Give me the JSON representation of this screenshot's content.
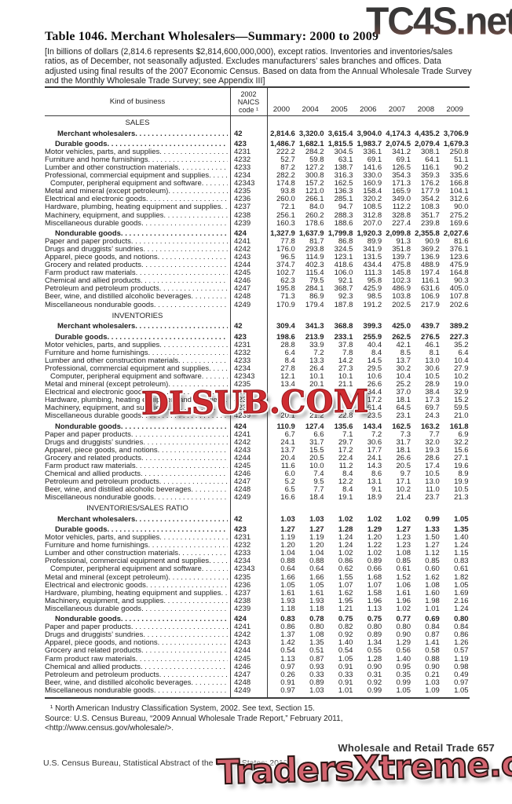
{
  "watermarks": {
    "top": "TC4S.net",
    "middle": "DLSUB.COM",
    "bottom": "TradersXtreme.com"
  },
  "colors": {
    "watermark_mid_red": "#cf2b30",
    "watermark_bottom_salmon": "#d2636e",
    "rule_gray": "#3c3c3c"
  },
  "title": "Table 1046. Merchant Wholesalers—Summary: 2000 to 2009",
  "note": "[In billions of dollars (2,814.6 represents $2,814,600,000,000), except ratios. Inventories and inventories/sales ratios, as of December, not seasonally adjusted. Excludes manufacturers’ sales branches and offices. Data adjusted using final results of the 2007 Economic Census. Based on data from the Annual Wholesale Trade Survey and the Monthly Wholesale Trade Survey; see Appendix III]",
  "table": {
    "header": {
      "kind": "Kind of business",
      "naics_lines": [
        "2002",
        "NAICS",
        "code ¹"
      ],
      "years": [
        "2000",
        "2004",
        "2005",
        "2006",
        "2007",
        "2008",
        "2009"
      ]
    },
    "row_defs": [
      {
        "label": "Merchant wholesalers",
        "code": "42",
        "style": "total"
      },
      {
        "label": "Durable goods",
        "code": "423",
        "style": "group"
      },
      {
        "label": "Motor vehicles, parts, and supplies",
        "code": "4231",
        "style": "item"
      },
      {
        "label": "Furniture and home furnishings",
        "code": "4232",
        "style": "item"
      },
      {
        "label": "Lumber and other construction materials",
        "code": "4233",
        "style": "item"
      },
      {
        "label": "Professional, commercial equipment and supplies",
        "code": "4234",
        "style": "item"
      },
      {
        "label": "Computer, peripheral equipment and software",
        "code": "42343",
        "style": "item2"
      },
      {
        "label": "Metal and mineral (except petroleum)",
        "code": "4235",
        "style": "item"
      },
      {
        "label": "Electrical and electronic goods",
        "code": "4236",
        "style": "item"
      },
      {
        "label": "Hardware, plumbing, heating equipment and supplies",
        "code": "4237",
        "style": "item"
      },
      {
        "label": "Machinery, equipment, and supplies",
        "code": "4238",
        "style": "item"
      },
      {
        "label": "Miscellaneous durable goods",
        "code": "4239",
        "style": "item"
      },
      {
        "label": "Nondurable goods",
        "code": "424",
        "style": "group"
      },
      {
        "label": "Paper and paper products",
        "code": "4241",
        "style": "item"
      },
      {
        "label": "Drugs and druggists’ sundries",
        "code": "4242",
        "style": "item"
      },
      {
        "label": "Apparel, piece goods, and notions",
        "code": "4243",
        "style": "item"
      },
      {
        "label": "Grocery and related products",
        "code": "4244",
        "style": "item"
      },
      {
        "label": "Farm product raw materials",
        "code": "4245",
        "style": "item"
      },
      {
        "label": "Chemical and allied products",
        "code": "4246",
        "style": "item"
      },
      {
        "label": "Petroleum and petroleum products",
        "code": "4247",
        "style": "item"
      },
      {
        "label": "Beer, wine, and distilled alcoholic beverages",
        "code": "4248",
        "style": "item"
      },
      {
        "label": "Miscellaneous nondurable goods",
        "code": "4249",
        "style": "item"
      }
    ],
    "sections": [
      {
        "heading": "SALES",
        "values": [
          [
            "2,814.6",
            "3,320.0",
            "3,615.4",
            "3,904.0",
            "4,174.3",
            "4,435.2",
            "3,706.9"
          ],
          [
            "1,486.7",
            "1,682.1",
            "1,815.5",
            "1,983.7",
            "2,074.5",
            "2,079.4",
            "1,679.3"
          ],
          [
            "222.2",
            "284.2",
            "304.5",
            "336.1",
            "341.2",
            "308.1",
            "250.8"
          ],
          [
            "52.7",
            "59.8",
            "63.1",
            "69.1",
            "69.1",
            "64.1",
            "51.1"
          ],
          [
            "87.2",
            "127.2",
            "138.7",
            "141.6",
            "126.5",
            "116.1",
            "90.2"
          ],
          [
            "282.2",
            "300.8",
            "316.3",
            "330.0",
            "354.3",
            "359.3",
            "335.6"
          ],
          [
            "174.8",
            "157.2",
            "162.5",
            "160.9",
            "171.3",
            "176.2",
            "166.8"
          ],
          [
            "93.8",
            "121.0",
            "136.3",
            "158.4",
            "165.9",
            "177.9",
            "104.1"
          ],
          [
            "260.0",
            "266.1",
            "285.1",
            "320.2",
            "349.0",
            "354.2",
            "312.6"
          ],
          [
            "72.1",
            "84.0",
            "94.7",
            "108.5",
            "112.2",
            "108.3",
            "90.0"
          ],
          [
            "256.1",
            "260.2",
            "288.3",
            "312.8",
            "328.8",
            "351.7",
            "275.2"
          ],
          [
            "160.3",
            "178.6",
            "188.6",
            "207.0",
            "227.4",
            "239.8",
            "169.6"
          ],
          [
            "1,327.9",
            "1,637.9",
            "1,799.8",
            "1,920.3",
            "2,099.8",
            "2,355.8",
            "2,027.6"
          ],
          [
            "77.8",
            "81.7",
            "86.8",
            "89.9",
            "91.3",
            "90.9",
            "81.6"
          ],
          [
            "176.0",
            "293.8",
            "324.5",
            "341.9",
            "351.8",
            "369.2",
            "376.1"
          ],
          [
            "96.5",
            "114.9",
            "123.1",
            "131.5",
            "139.7",
            "136.9",
            "123.6"
          ],
          [
            "374.7",
            "402.3",
            "418.6",
            "434.4",
            "475.8",
            "488.9",
            "475.9"
          ],
          [
            "102.7",
            "115.4",
            "106.0",
            "111.3",
            "145.8",
            "197.4",
            "164.8"
          ],
          [
            "62.3",
            "79.5",
            "92.1",
            "95.8",
            "102.3",
            "116.1",
            "90.3"
          ],
          [
            "195.8",
            "284.1",
            "368.7",
            "425.9",
            "486.9",
            "631.6",
            "405.0"
          ],
          [
            "71.3",
            "86.9",
            "92.3",
            "98.5",
            "103.8",
            "106.9",
            "107.8"
          ],
          [
            "170.9",
            "179.4",
            "187.8",
            "191.2",
            "202.5",
            "217.9",
            "202.6"
          ]
        ]
      },
      {
        "heading": "INVENTORIES",
        "values": [
          [
            "309.4",
            "341.3",
            "368.8",
            "399.3",
            "425.0",
            "439.7",
            "389.2"
          ],
          [
            "198.6",
            "213.9",
            "233.1",
            "255.9",
            "262.5",
            "276.5",
            "227.3"
          ],
          [
            "28.8",
            "33.9",
            "37.8",
            "40.4",
            "42.1",
            "46.1",
            "35.2"
          ],
          [
            "6.4",
            "7.2",
            "7.8",
            "8.4",
            "8.5",
            "8.1",
            "6.4"
          ],
          [
            "8.4",
            "13.3",
            "14.2",
            "14.5",
            "13.7",
            "13.0",
            "10.4"
          ],
          [
            "27.8",
            "26.4",
            "27.3",
            "29.5",
            "30.2",
            "30.6",
            "27.9"
          ],
          [
            "12.1",
            "10.1",
            "10.1",
            "10.6",
            "10.4",
            "10.5",
            "10.2"
          ],
          [
            "13.4",
            "20.1",
            "21.1",
            "26.6",
            "25.2",
            "28.9",
            "19.0"
          ],
          [
            "",
            "",
            "",
            "34.4",
            "37.0",
            "38.4",
            "32.9"
          ],
          [
            "",
            "",
            "",
            "17.2",
            "18.1",
            "17.3",
            "15.2"
          ],
          [
            "",
            "",
            "",
            "61.4",
            "64.5",
            "69.7",
            "59.5"
          ],
          [
            "20.1",
            "21.2",
            "22.8",
            "23.5",
            "23.1",
            "24.3",
            "21.0"
          ],
          [
            "110.9",
            "127.4",
            "135.6",
            "143.4",
            "162.5",
            "163.2",
            "161.8"
          ],
          [
            "6.7",
            "6.6",
            "7.1",
            "7.2",
            "7.3",
            "7.7",
            "6.9"
          ],
          [
            "24.1",
            "31.7",
            "29.7",
            "30.6",
            "31.7",
            "32.0",
            "32.2"
          ],
          [
            "13.7",
            "15.5",
            "17.2",
            "17.7",
            "18.1",
            "19.3",
            "15.6"
          ],
          [
            "20.4",
            "20.5",
            "22.4",
            "24.1",
            "26.6",
            "28.6",
            "27.1"
          ],
          [
            "11.6",
            "10.0",
            "11.2",
            "14.3",
            "20.5",
            "17.4",
            "19.6"
          ],
          [
            "6.0",
            "7.4",
            "8.4",
            "8.6",
            "9.7",
            "10.5",
            "8.9"
          ],
          [
            "5.2",
            "9.5",
            "12.2",
            "13.1",
            "17.1",
            "13.0",
            "19.9"
          ],
          [
            "6.5",
            "7.7",
            "8.4",
            "9.1",
            "10.2",
            "11.0",
            "10.5"
          ],
          [
            "16.6",
            "18.4",
            "19.1",
            "18.9",
            "21.4",
            "23.7",
            "21.3"
          ]
        ]
      },
      {
        "heading": "INVENTORIES/SALES RATIO",
        "values": [
          [
            "1.03",
            "1.03",
            "1.02",
            "1.02",
            "1.02",
            "0.99",
            "1.05"
          ],
          [
            "1.27",
            "1.27",
            "1.28",
            "1.29",
            "1.27",
            "1.33",
            "1.35"
          ],
          [
            "1.19",
            "1.19",
            "1.24",
            "1.20",
            "1.23",
            "1.50",
            "1.40"
          ],
          [
            "1.20",
            "1.20",
            "1.24",
            "1.22",
            "1.23",
            "1.27",
            "1.24"
          ],
          [
            "1.04",
            "1.04",
            "1.02",
            "1.02",
            "1.08",
            "1.12",
            "1.15"
          ],
          [
            "0.88",
            "0.88",
            "0.86",
            "0.89",
            "0.85",
            "0.85",
            "0.83"
          ],
          [
            "0.64",
            "0.64",
            "0.62",
            "0.66",
            "0.61",
            "0.60",
            "0.61"
          ],
          [
            "1.66",
            "1.66",
            "1.55",
            "1.68",
            "1.52",
            "1.62",
            "1.82"
          ],
          [
            "1.05",
            "1.05",
            "1.07",
            "1.07",
            "1.06",
            "1.08",
            "1.05"
          ],
          [
            "1.61",
            "1.61",
            "1.62",
            "1.58",
            "1.61",
            "1.60",
            "1.69"
          ],
          [
            "1.93",
            "1.93",
            "1.95",
            "1.96",
            "1.96",
            "1.98",
            "2.16"
          ],
          [
            "1.18",
            "1.18",
            "1.21",
            "1.13",
            "1.02",
            "1.01",
            "1.24"
          ],
          [
            "0.83",
            "0.78",
            "0.75",
            "0.75",
            "0.77",
            "0.69",
            "0.80"
          ],
          [
            "0.86",
            "0.80",
            "0.82",
            "0.80",
            "0.80",
            "0.84",
            "0.84"
          ],
          [
            "1.37",
            "1.08",
            "0.92",
            "0.89",
            "0.90",
            "0.87",
            "0.86"
          ],
          [
            "1.42",
            "1.35",
            "1.40",
            "1.34",
            "1.29",
            "1.41",
            "1.26"
          ],
          [
            "0.54",
            "0.51",
            "0.54",
            "0.55",
            "0.56",
            "0.58",
            "0.57"
          ],
          [
            "1.13",
            "0.87",
            "1.05",
            "1.28",
            "1.40",
            "0.88",
            "1.19"
          ],
          [
            "0.97",
            "0.93",
            "0.91",
            "0.90",
            "0.95",
            "0.90",
            "0.98"
          ],
          [
            "0.26",
            "0.33",
            "0.33",
            "0.31",
            "0.35",
            "0.21",
            "0.49"
          ],
          [
            "0.91",
            "0.89",
            "0.91",
            "0.92",
            "0.99",
            "1.03",
            "0.97"
          ],
          [
            "0.97",
            "1.03",
            "1.01",
            "0.99",
            "1.05",
            "1.09",
            "1.05"
          ]
        ]
      }
    ]
  },
  "footnotes": {
    "fn1": "¹ North American Industry Classification System, 2002. See text, Section 15.",
    "source": "Source: U.S. Census Bureau, “2009 Annual Wholesale Trade Report,” February 2011, <http://www.census.gov/wholesale/>."
  },
  "page_footer": {
    "right": "Wholesale and Retail Trade  657",
    "left": "U.S. Census Bureau, Statistical Abstract of the United States: 2012"
  }
}
